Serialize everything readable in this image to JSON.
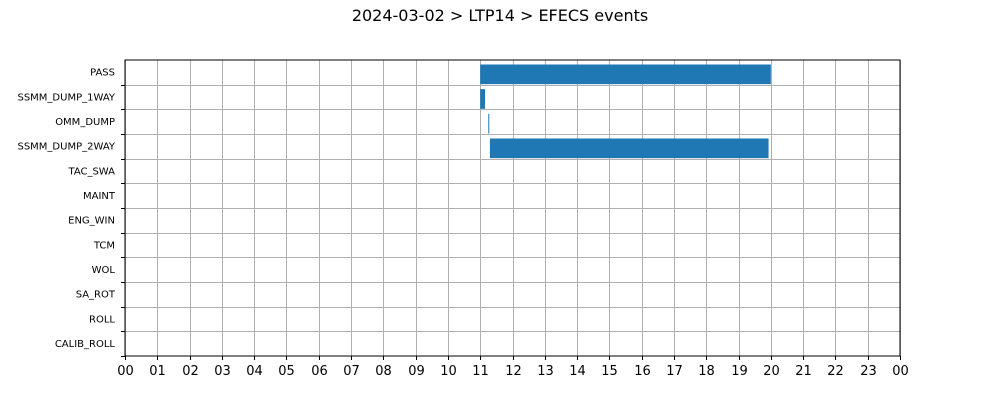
{
  "chart_data": {
    "type": "bar",
    "orientation": "horizontal",
    "title": "2024-03-02 > LTP14 > EFECS events",
    "xlabel": "",
    "ylabel": "",
    "x_unit": "hour",
    "xlim": [
      0,
      24
    ],
    "x_tick_labels": [
      "00",
      "01",
      "02",
      "03",
      "04",
      "05",
      "06",
      "07",
      "08",
      "09",
      "10",
      "11",
      "12",
      "13",
      "14",
      "15",
      "16",
      "17",
      "18",
      "19",
      "20",
      "21",
      "22",
      "23",
      "00"
    ],
    "categories": [
      "PASS",
      "SSMM_DUMP_1WAY",
      "OMM_DUMP",
      "SSMM_DUMP_2WAY",
      "TAC_SWA",
      "MAINT",
      "ENG_WIN",
      "TCM",
      "WOL",
      "SA_ROT",
      "ROLL",
      "CALIB_ROLL"
    ],
    "grid": true,
    "bar_color": "#1f77b4",
    "events": [
      {
        "category": "PASS",
        "start": 11.0,
        "end": 20.0
      },
      {
        "category": "SSMM_DUMP_1WAY",
        "start": 11.0,
        "end": 11.15
      },
      {
        "category": "OMM_DUMP",
        "start": 11.25,
        "end": 11.28
      },
      {
        "category": "SSMM_DUMP_2WAY",
        "start": 11.3,
        "end": 19.93
      }
    ]
  }
}
